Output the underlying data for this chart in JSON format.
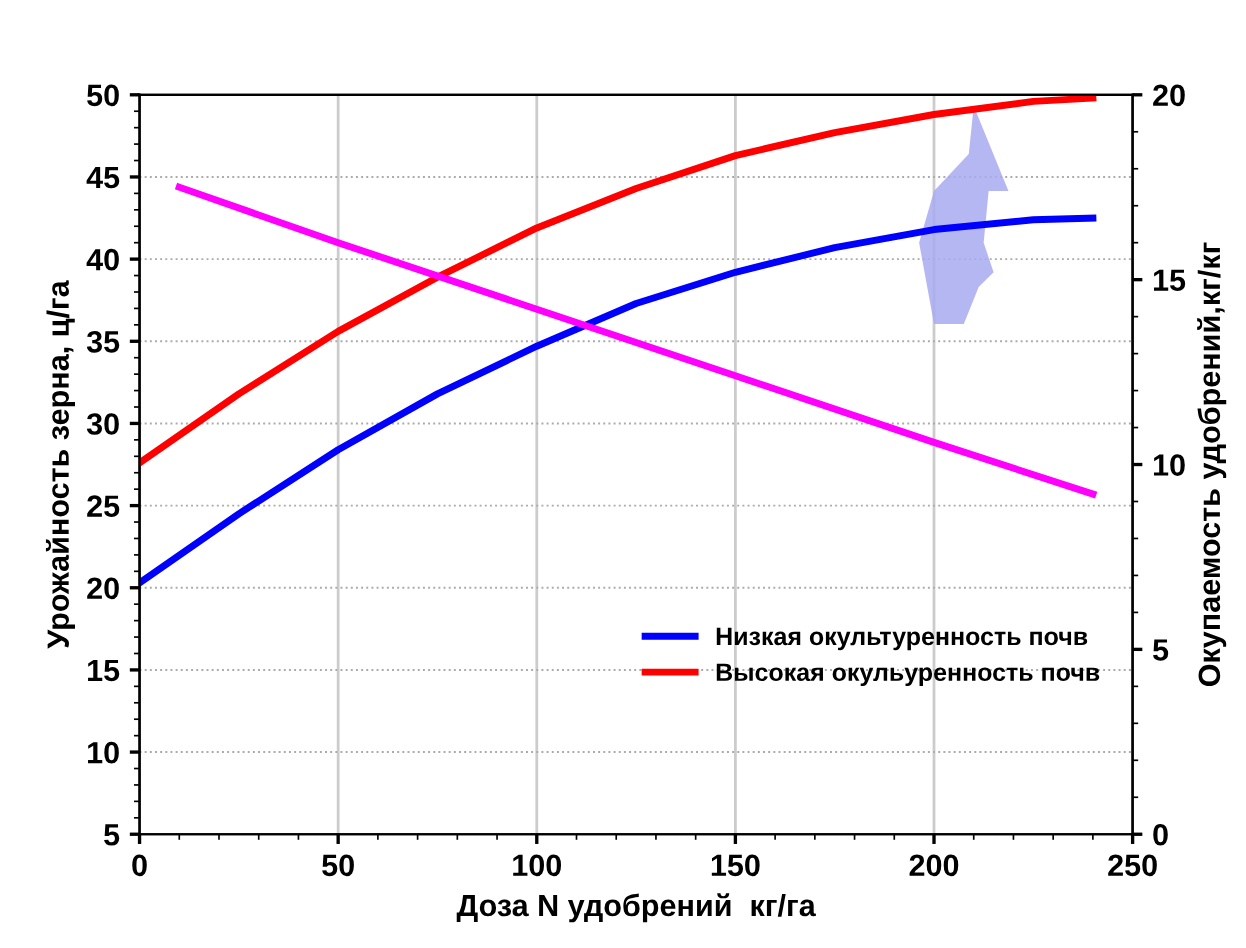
{
  "chart_data": {
    "type": "line",
    "xlabel": "Доза N удобрений  кг/га",
    "ylabel": "Урожайность зерна, ц/га",
    "y2label": "Окупаемость удобрений,кг/кг",
    "xlim": [
      0,
      250
    ],
    "xticks": [
      0,
      50,
      100,
      150,
      200,
      250
    ],
    "ylim": [
      5,
      50
    ],
    "yticks": [
      5,
      10,
      15,
      20,
      25,
      30,
      35,
      40,
      45,
      50
    ],
    "y2lim": [
      0,
      20
    ],
    "y2ticks": [
      0,
      5,
      10,
      15,
      20
    ],
    "grid": true,
    "legend": "bottom right",
    "marker": "none",
    "line_style": "solid",
    "series": [
      {
        "name": "Низкая окультуренность почв",
        "color": "#0000ff",
        "x": [
          0,
          25,
          50,
          75,
          100,
          125,
          150,
          175,
          200,
          225,
          240
        ],
        "values": [
          20.3,
          24.5,
          28.4,
          31.8,
          34.7,
          37.3,
          39.2,
          40.7,
          41.8,
          42.4,
          42.5
        ]
      },
      {
        "name": "Высокая окульуренность почв",
        "color": "#ff0000",
        "x": [
          0,
          25,
          50,
          75,
          100,
          125,
          150,
          175,
          200,
          225,
          240
        ],
        "values": [
          27.6,
          31.8,
          35.6,
          38.9,
          41.9,
          44.3,
          46.3,
          47.7,
          48.8,
          49.6,
          49.8
        ]
      },
      {
        "color": "#ff00ff",
        "axis": "y2",
        "x": [
          10,
          50,
          100,
          150,
          200,
          240
        ],
        "values": [
          17.5,
          16.0,
          14.2,
          12.4,
          10.6,
          9.2
        ]
      }
    ]
  }
}
